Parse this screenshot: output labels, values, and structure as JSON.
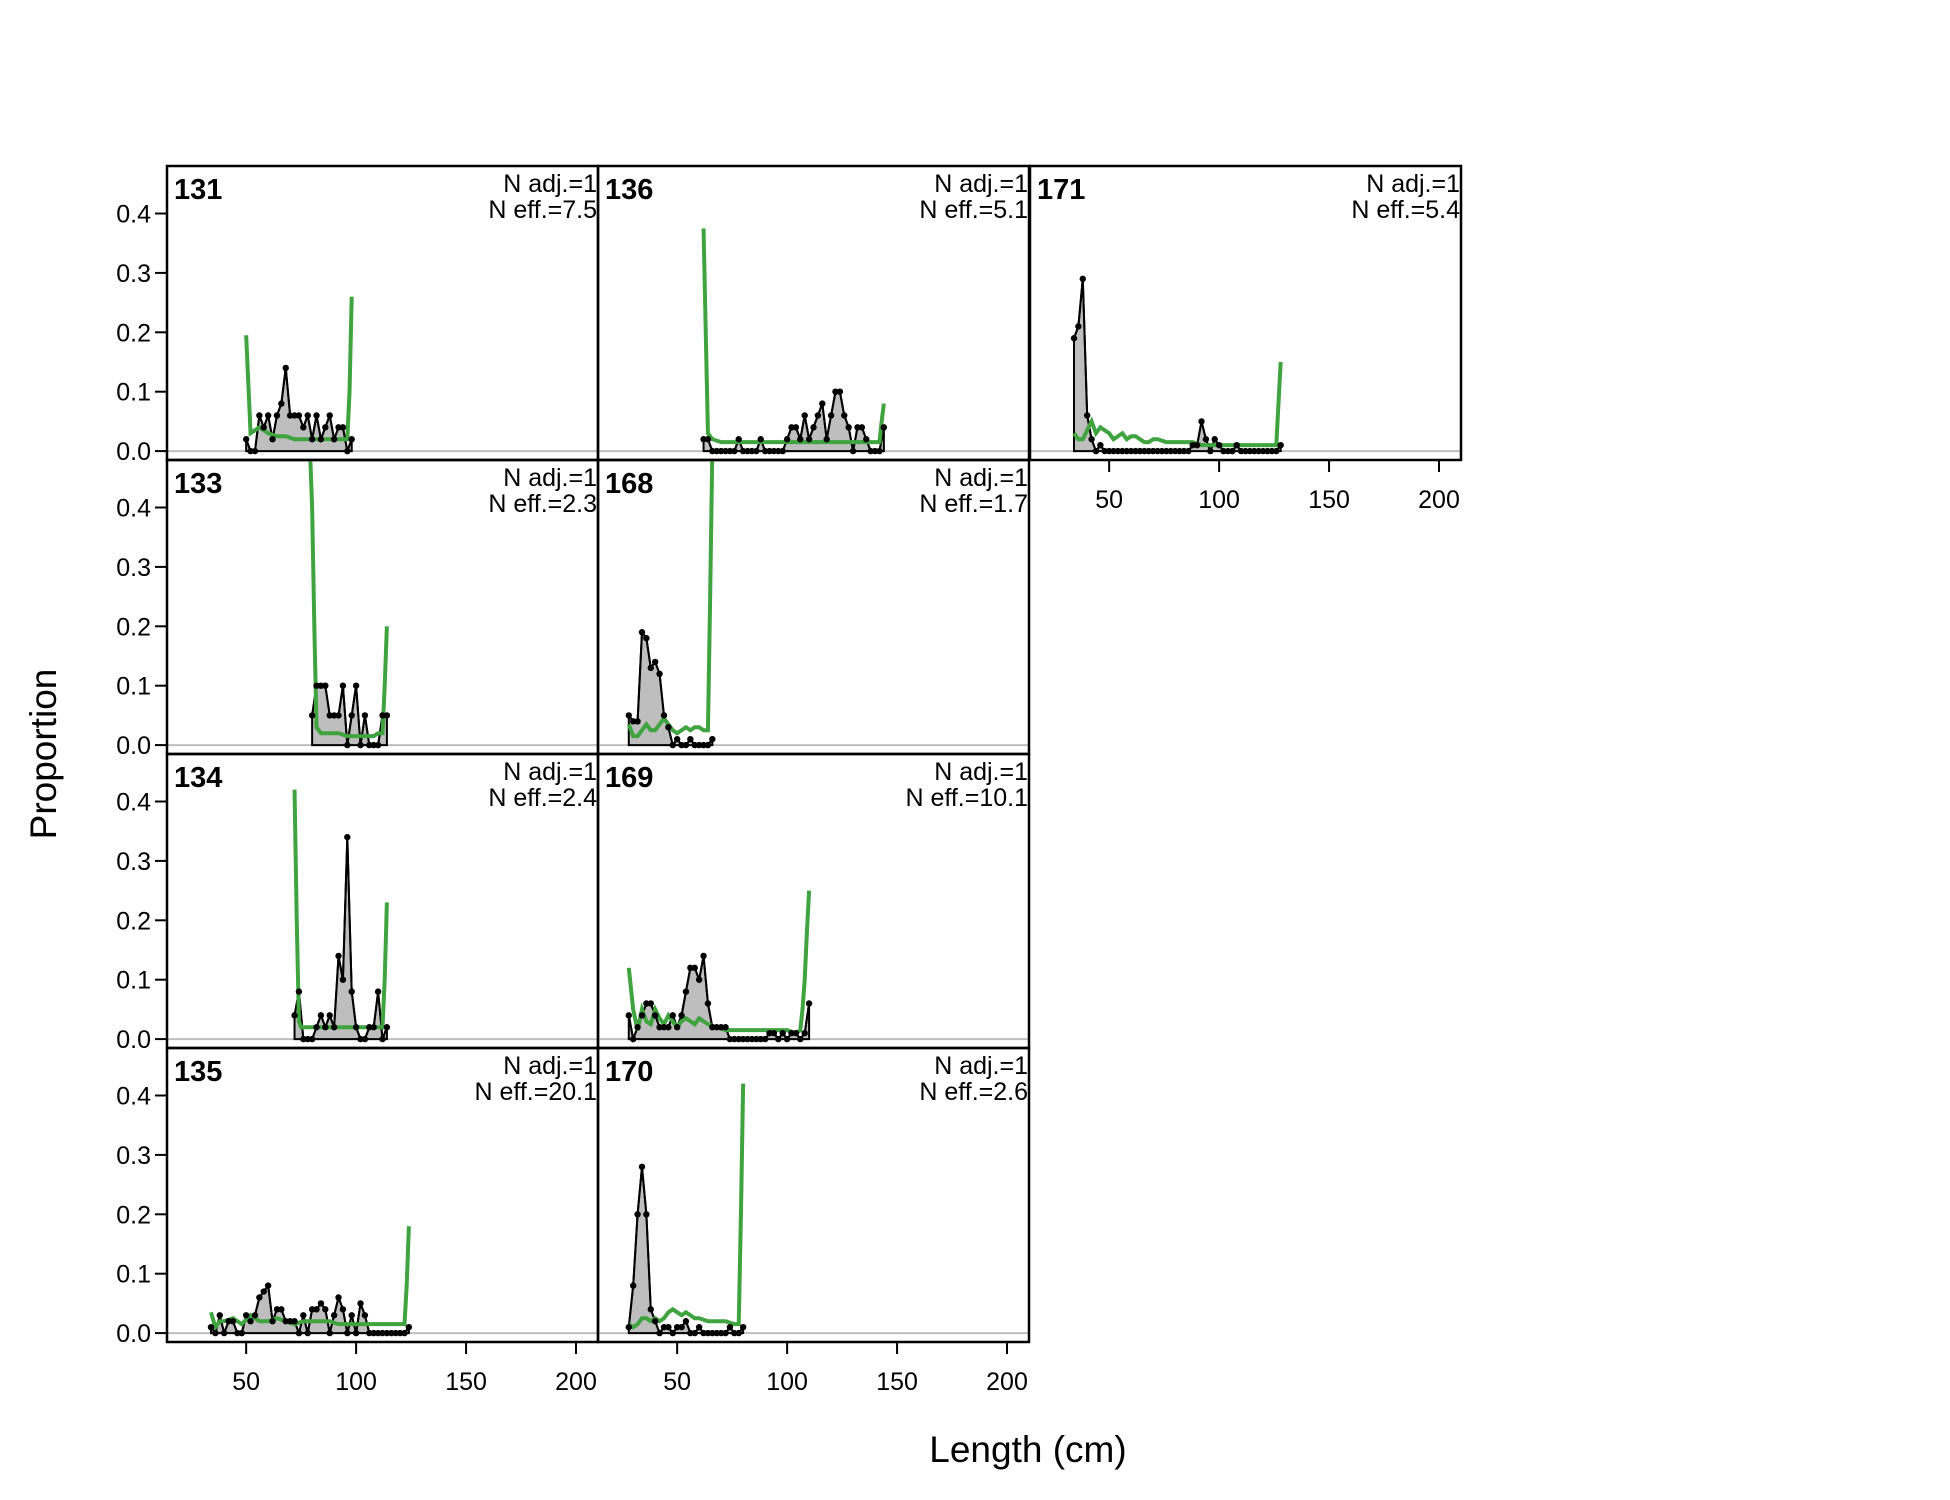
{
  "chart_data": {
    "type": "line",
    "xlabel": "Length (cm)",
    "ylabel": "Proportion",
    "xlim": [
      14,
      210
    ],
    "ylim": [
      -0.015,
      0.48
    ],
    "xticks": [
      50,
      100,
      150,
      200
    ],
    "yticks": [
      0.0,
      0.1,
      0.2,
      0.3,
      0.4
    ],
    "ytick_labels": [
      "0.0",
      "0.1",
      "0.2",
      "0.3",
      "0.4"
    ],
    "colors": {
      "observed_fill": "#bebebe",
      "observed_line": "#000000",
      "expected_line": "#3fa33f",
      "zero_line": "#bebebe"
    },
    "panels": [
      {
        "label": "131",
        "n_adj": "N adj.=1",
        "n_eff": "N eff.=7.5",
        "observed": {
          "x": [
            50,
            52,
            54,
            56,
            58,
            60,
            62,
            64,
            66,
            68,
            70,
            72,
            74,
            76,
            78,
            80,
            82,
            84,
            86,
            88,
            90,
            92,
            94,
            96,
            98
          ],
          "y": [
            0.02,
            0,
            0,
            0.06,
            0.04,
            0.06,
            0.02,
            0.06,
            0.08,
            0.14,
            0.06,
            0.06,
            0.06,
            0.04,
            0.06,
            0.02,
            0.06,
            0.02,
            0.04,
            0.06,
            0.02,
            0.04,
            0.04,
            0,
            0.02
          ]
        },
        "expected": {
          "x": [
            50,
            52,
            56,
            60,
            64,
            68,
            72,
            76,
            80,
            84,
            88,
            92,
            96,
            97,
            98
          ],
          "y": [
            0.195,
            0.03,
            0.04,
            0.03,
            0.025,
            0.025,
            0.02,
            0.02,
            0.02,
            0.02,
            0.02,
            0.02,
            0.02,
            0.1,
            0.26
          ]
        }
      },
      {
        "label": "133",
        "n_adj": "N adj.=1",
        "n_eff": "N eff.=2.3",
        "observed": {
          "x": [
            80,
            82,
            84,
            86,
            88,
            90,
            92,
            94,
            96,
            98,
            100,
            102,
            104,
            106,
            108,
            110,
            112,
            114
          ],
          "y": [
            0.05,
            0.1,
            0.1,
            0.1,
            0.05,
            0.05,
            0.05,
            0.1,
            0,
            0.05,
            0.1,
            0,
            0.05,
            0,
            0,
            0,
            0.05,
            0.05
          ]
        },
        "expected": {
          "x": [
            79,
            80,
            81,
            82,
            84,
            88,
            92,
            96,
            100,
            104,
            108,
            110,
            112,
            113,
            114
          ],
          "y": [
            0.5,
            0.4,
            0.2,
            0.03,
            0.02,
            0.02,
            0.02,
            0.015,
            0.015,
            0.015,
            0.015,
            0.02,
            0.02,
            0.1,
            0.2
          ]
        }
      },
      {
        "label": "134",
        "n_adj": "N adj.=1",
        "n_eff": "N eff.=2.4",
        "observed": {
          "x": [
            72,
            74,
            76,
            78,
            80,
            82,
            84,
            86,
            88,
            90,
            92,
            94,
            96,
            98,
            100,
            102,
            104,
            106,
            108,
            110,
            112,
            114
          ],
          "y": [
            0.04,
            0.08,
            0,
            0,
            0,
            0.02,
            0.04,
            0.02,
            0.04,
            0.02,
            0.14,
            0.1,
            0.34,
            0.08,
            0.02,
            0,
            0,
            0.02,
            0.02,
            0.08,
            0,
            0.02
          ]
        },
        "expected": {
          "x": [
            72,
            73,
            74,
            75,
            78,
            82,
            86,
            90,
            94,
            98,
            102,
            106,
            110,
            112,
            113,
            114
          ],
          "y": [
            0.42,
            0.2,
            0.03,
            0.02,
            0.02,
            0.02,
            0.02,
            0.02,
            0.02,
            0.02,
            0.02,
            0.02,
            0.02,
            0.02,
            0.1,
            0.23
          ]
        }
      },
      {
        "label": "135",
        "n_adj": "N adj.=1",
        "n_eff": "N eff.=20.1",
        "observed": {
          "x": [
            34,
            36,
            38,
            40,
            42,
            44,
            46,
            48,
            50,
            52,
            54,
            56,
            58,
            60,
            62,
            64,
            66,
            68,
            70,
            72,
            74,
            76,
            78,
            80,
            82,
            84,
            86,
            88,
            90,
            92,
            94,
            96,
            98,
            100,
            102,
            104,
            106,
            108,
            110,
            112,
            114,
            116,
            118,
            120,
            122,
            124
          ],
          "y": [
            0.01,
            0,
            0.03,
            0,
            0.02,
            0.02,
            0,
            0,
            0.03,
            0.02,
            0.03,
            0.06,
            0.07,
            0.08,
            0.02,
            0.04,
            0.04,
            0.02,
            0.02,
            0.02,
            0,
            0.03,
            0,
            0.04,
            0.04,
            0.05,
            0.04,
            0,
            0.03,
            0.06,
            0.04,
            0,
            0.03,
            0,
            0.05,
            0.03,
            0,
            0,
            0,
            0,
            0,
            0,
            0,
            0,
            0,
            0.01
          ]
        },
        "expected": {
          "x": [
            34,
            36,
            38,
            40,
            44,
            48,
            52,
            56,
            60,
            64,
            68,
            72,
            76,
            80,
            84,
            88,
            92,
            96,
            100,
            104,
            108,
            112,
            116,
            120,
            122,
            123,
            124
          ],
          "y": [
            0.035,
            0.01,
            0.02,
            0.02,
            0.025,
            0.015,
            0.03,
            0.02,
            0.02,
            0.025,
            0.02,
            0.015,
            0.02,
            0.02,
            0.02,
            0.02,
            0.015,
            0.015,
            0.015,
            0.015,
            0.015,
            0.015,
            0.015,
            0.015,
            0.015,
            0.08,
            0.18
          ]
        }
      },
      {
        "label": "136",
        "n_adj": "N adj.=1",
        "n_eff": "N eff.=5.1",
        "observed": {
          "x": [
            62,
            64,
            66,
            68,
            70,
            72,
            74,
            76,
            78,
            80,
            82,
            84,
            86,
            88,
            90,
            92,
            94,
            96,
            98,
            100,
            102,
            104,
            106,
            108,
            110,
            112,
            114,
            116,
            118,
            120,
            122,
            124,
            126,
            128,
            130,
            132,
            134,
            136,
            138,
            140,
            142,
            144
          ],
          "y": [
            0.02,
            0.02,
            0,
            0,
            0,
            0,
            0,
            0,
            0.02,
            0,
            0,
            0,
            0,
            0.02,
            0,
            0,
            0,
            0,
            0,
            0.02,
            0.04,
            0.04,
            0.02,
            0.06,
            0.02,
            0.04,
            0.06,
            0.08,
            0.02,
            0.06,
            0.1,
            0.1,
            0.06,
            0.04,
            0,
            0.04,
            0.04,
            0.02,
            0,
            0,
            0,
            0.04
          ]
        },
        "expected": {
          "x": [
            62,
            63,
            64,
            66,
            70,
            80,
            90,
            100,
            110,
            120,
            130,
            140,
            142,
            143,
            144
          ],
          "y": [
            0.375,
            0.2,
            0.03,
            0.02,
            0.015,
            0.015,
            0.015,
            0.015,
            0.015,
            0.015,
            0.015,
            0.015,
            0.015,
            0.05,
            0.08
          ]
        }
      },
      {
        "label": "168",
        "n_adj": "N adj.=1",
        "n_eff": "N eff.=1.7",
        "observed": {
          "x": [
            28,
            30,
            32,
            34,
            36,
            38,
            40,
            42,
            44,
            46,
            48,
            50,
            52,
            54,
            56,
            58,
            60,
            62,
            64,
            66
          ],
          "y": [
            0.05,
            0.04,
            0.04,
            0.19,
            0.18,
            0.13,
            0.14,
            0.12,
            0.05,
            0.03,
            0,
            0.01,
            0,
            0,
            0.01,
            0,
            0,
            0,
            0,
            0.01
          ]
        },
        "expected": {
          "x": [
            28,
            30,
            32,
            34,
            36,
            38,
            40,
            42,
            44,
            46,
            48,
            50,
            52,
            54,
            56,
            58,
            60,
            62,
            64,
            65,
            66
          ],
          "y": [
            0.035,
            0.015,
            0.015,
            0.025,
            0.035,
            0.025,
            0.025,
            0.035,
            0.045,
            0.035,
            0.025,
            0.02,
            0.025,
            0.03,
            0.025,
            0.03,
            0.03,
            0.025,
            0.025,
            0.25,
            0.5
          ]
        }
      },
      {
        "label": "169",
        "n_adj": "N adj.=1",
        "n_eff": "N eff.=10.1",
        "observed": {
          "x": [
            28,
            30,
            32,
            34,
            36,
            38,
            40,
            42,
            44,
            46,
            48,
            50,
            52,
            54,
            56,
            58,
            60,
            62,
            64,
            66,
            68,
            70,
            72,
            74,
            76,
            78,
            80,
            82,
            84,
            86,
            88,
            90,
            92,
            94,
            96,
            98,
            100,
            102,
            104,
            106,
            108,
            110
          ],
          "y": [
            0.04,
            0,
            0.02,
            0.04,
            0.06,
            0.06,
            0.04,
            0.02,
            0.02,
            0.02,
            0.04,
            0.02,
            0.04,
            0.08,
            0.12,
            0.12,
            0.1,
            0.14,
            0.06,
            0.02,
            0.02,
            0.02,
            0.02,
            0,
            0,
            0,
            0,
            0,
            0,
            0,
            0,
            0,
            0.01,
            0.01,
            0,
            0.01,
            0,
            0.01,
            0.01,
            0,
            0.01,
            0.06
          ]
        },
        "expected": {
          "x": [
            28,
            30,
            32,
            34,
            36,
            38,
            40,
            42,
            44,
            46,
            48,
            50,
            52,
            54,
            56,
            58,
            60,
            64,
            68,
            72,
            80,
            90,
            100,
            104,
            106,
            107,
            108,
            109,
            110
          ],
          "y": [
            0.12,
            0.05,
            0.015,
            0.05,
            0.03,
            0.025,
            0.05,
            0.035,
            0.025,
            0.04,
            0.03,
            0.02,
            0.03,
            0.035,
            0.03,
            0.025,
            0.035,
            0.025,
            0.02,
            0.015,
            0.015,
            0.015,
            0.015,
            0.01,
            0.015,
            0.05,
            0.1,
            0.18,
            0.25
          ]
        }
      },
      {
        "label": "170",
        "n_adj": "N adj.=1",
        "n_eff": "N eff.=2.6",
        "observed": {
          "x": [
            28,
            30,
            32,
            34,
            36,
            38,
            40,
            42,
            44,
            46,
            48,
            50,
            52,
            54,
            56,
            58,
            60,
            62,
            64,
            66,
            68,
            70,
            72,
            74,
            76,
            78,
            80
          ],
          "y": [
            0.01,
            0.08,
            0.2,
            0.28,
            0.2,
            0.04,
            0.02,
            0,
            0.01,
            0.01,
            0,
            0.01,
            0.01,
            0.02,
            0,
            0,
            0.01,
            0,
            0,
            0,
            0,
            0,
            0,
            0.01,
            0,
            0,
            0.01
          ]
        },
        "expected": {
          "x": [
            28,
            30,
            32,
            34,
            36,
            38,
            40,
            42,
            44,
            46,
            48,
            50,
            52,
            54,
            56,
            58,
            60,
            64,
            68,
            72,
            76,
            78,
            79,
            80
          ],
          "y": [
            0.015,
            0.01,
            0.015,
            0.025,
            0.025,
            0.02,
            0.025,
            0.02,
            0.025,
            0.035,
            0.04,
            0.035,
            0.03,
            0.035,
            0.03,
            0.025,
            0.025,
            0.02,
            0.02,
            0.02,
            0.015,
            0.015,
            0.2,
            0.42
          ]
        }
      },
      {
        "label": "171",
        "n_adj": "N adj.=1",
        "n_eff": "N eff.=5.4",
        "observed": {
          "x": [
            34,
            36,
            38,
            40,
            42,
            44,
            46,
            48,
            50,
            52,
            54,
            56,
            58,
            60,
            62,
            64,
            66,
            68,
            70,
            72,
            74,
            76,
            78,
            80,
            82,
            84,
            86,
            88,
            90,
            92,
            94,
            96,
            98,
            100,
            102,
            104,
            106,
            108,
            110,
            112,
            114,
            116,
            118,
            120,
            122,
            124,
            126,
            128
          ],
          "y": [
            0.19,
            0.21,
            0.29,
            0.06,
            0.02,
            0,
            0.01,
            0,
            0,
            0,
            0,
            0,
            0,
            0,
            0,
            0,
            0,
            0,
            0,
            0,
            0,
            0,
            0,
            0,
            0,
            0,
            0,
            0.01,
            0.01,
            0.05,
            0.02,
            0,
            0.02,
            0.01,
            0,
            0,
            0,
            0.01,
            0,
            0,
            0,
            0,
            0,
            0,
            0,
            0,
            0,
            0.01
          ]
        },
        "expected": {
          "x": [
            34,
            36,
            38,
            40,
            42,
            44,
            46,
            48,
            50,
            52,
            54,
            56,
            58,
            60,
            62,
            64,
            66,
            68,
            70,
            72,
            76,
            80,
            84,
            88,
            92,
            96,
            100,
            104,
            108,
            112,
            116,
            120,
            124,
            126,
            127,
            128
          ],
          "y": [
            0.03,
            0.02,
            0.02,
            0.035,
            0.05,
            0.03,
            0.04,
            0.035,
            0.03,
            0.02,
            0.025,
            0.03,
            0.02,
            0.025,
            0.025,
            0.02,
            0.015,
            0.015,
            0.02,
            0.02,
            0.015,
            0.015,
            0.015,
            0.015,
            0.01,
            0.01,
            0.01,
            0.01,
            0.01,
            0.01,
            0.01,
            0.01,
            0.01,
            0.01,
            0.08,
            0.15
          ]
        }
      }
    ]
  }
}
